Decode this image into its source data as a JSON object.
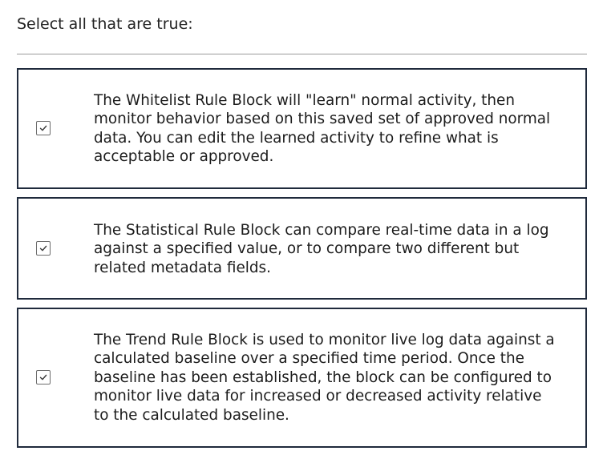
{
  "question": {
    "prompt": "Select all that are true:"
  },
  "options": [
    {
      "checked": true,
      "text": "The Whitelist Rule Block will \"learn\" normal activity, then monitor behavior based on this saved set of approved normal data. You can edit the learned activity to refine what is acceptable or approved."
    },
    {
      "checked": true,
      "text": "The Statistical Rule Block can compare real-time data in a log against a specified value, or to compare two different but related metadata fields."
    },
    {
      "checked": true,
      "text": "The Trend Rule Block is used to monitor live log data against a calculated baseline over a specified time period. Once the baseline has been established, the block can be configured to monitor live data for increased or decreased activity relative to the calculated baseline."
    }
  ],
  "icons": {
    "checkbox_mark": "checkmark-icon"
  },
  "colors": {
    "option_border": "#1f2a3c",
    "divider": "#9a9a9a",
    "text": "#1c1c1c"
  }
}
